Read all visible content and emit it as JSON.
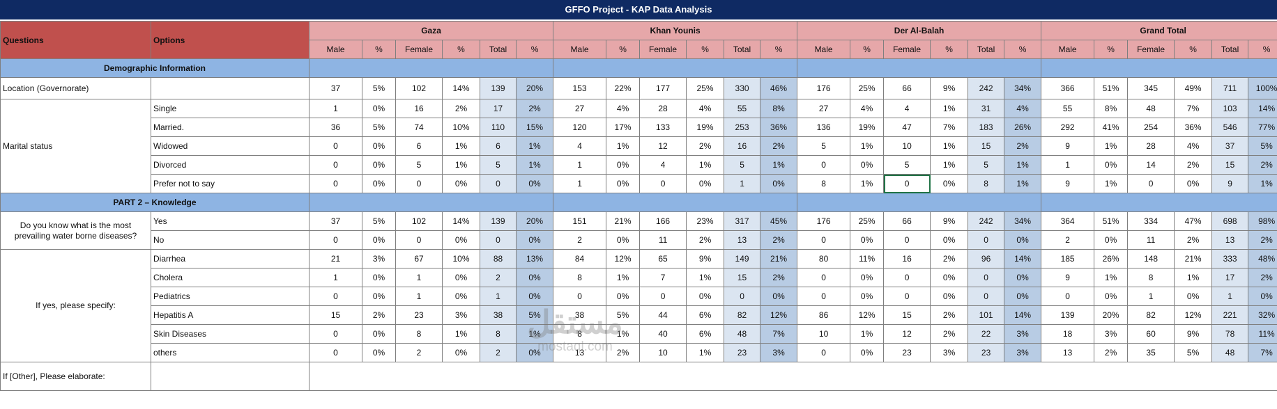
{
  "title": "GFFO Project - KAP Data Analysis",
  "headers": {
    "questions": "Questions",
    "options": "Options",
    "regions": [
      "Gaza",
      "Khan Younis",
      "Der Al-Balah",
      "Grand Total"
    ],
    "sub": [
      "Male",
      "%",
      "Female",
      "%",
      "Total",
      "%"
    ]
  },
  "sections": {
    "demo": "Demographic Information",
    "knowledge": "PART 2 – Knowledge"
  },
  "questions": {
    "location": "Location (Governorate)",
    "marital": "Marital status",
    "know_line1": "Do you know what is the most",
    "know_line2": "prevailing water borne diseases?",
    "specify": "If yes, please specify:",
    "other": "If [Other], Please elaborate:"
  },
  "rows": [
    {
      "option": "",
      "values": [
        "37",
        "5%",
        "102",
        "14%",
        "139",
        "20%",
        "153",
        "22%",
        "177",
        "25%",
        "330",
        "46%",
        "176",
        "25%",
        "66",
        "9%",
        "242",
        "34%",
        "366",
        "51%",
        "345",
        "49%",
        "711",
        "100%"
      ]
    },
    {
      "option": "Single",
      "values": [
        "1",
        "0%",
        "16",
        "2%",
        "17",
        "2%",
        "27",
        "4%",
        "28",
        "4%",
        "55",
        "8%",
        "27",
        "4%",
        "4",
        "1%",
        "31",
        "4%",
        "55",
        "8%",
        "48",
        "7%",
        "103",
        "14%"
      ]
    },
    {
      "option": "Married.",
      "values": [
        "36",
        "5%",
        "74",
        "10%",
        "110",
        "15%",
        "120",
        "17%",
        "133",
        "19%",
        "253",
        "36%",
        "136",
        "19%",
        "47",
        "7%",
        "183",
        "26%",
        "292",
        "41%",
        "254",
        "36%",
        "546",
        "77%"
      ]
    },
    {
      "option": "Widowed",
      "values": [
        "0",
        "0%",
        "6",
        "1%",
        "6",
        "1%",
        "4",
        "1%",
        "12",
        "2%",
        "16",
        "2%",
        "5",
        "1%",
        "10",
        "1%",
        "15",
        "2%",
        "9",
        "1%",
        "28",
        "4%",
        "37",
        "5%"
      ]
    },
    {
      "option": "Divorced",
      "values": [
        "0",
        "0%",
        "5",
        "1%",
        "5",
        "1%",
        "1",
        "0%",
        "4",
        "1%",
        "5",
        "1%",
        "0",
        "0%",
        "5",
        "1%",
        "5",
        "1%",
        "1",
        "0%",
        "14",
        "2%",
        "15",
        "2%"
      ]
    },
    {
      "option": "Prefer not to say",
      "values": [
        "0",
        "0%",
        "0",
        "0%",
        "0",
        "0%",
        "1",
        "0%",
        "0",
        "0%",
        "1",
        "0%",
        "8",
        "1%",
        "0",
        "0%",
        "8",
        "1%",
        "9",
        "1%",
        "0",
        "0%",
        "9",
        "1%"
      ]
    },
    {
      "option": "Yes",
      "values": [
        "37",
        "5%",
        "102",
        "14%",
        "139",
        "20%",
        "151",
        "21%",
        "166",
        "23%",
        "317",
        "45%",
        "176",
        "25%",
        "66",
        "9%",
        "242",
        "34%",
        "364",
        "51%",
        "334",
        "47%",
        "698",
        "98%"
      ]
    },
    {
      "option": "No",
      "values": [
        "0",
        "0%",
        "0",
        "0%",
        "0",
        "0%",
        "2",
        "0%",
        "11",
        "2%",
        "13",
        "2%",
        "0",
        "0%",
        "0",
        "0%",
        "0",
        "0%",
        "2",
        "0%",
        "11",
        "2%",
        "13",
        "2%"
      ]
    },
    {
      "option": "Diarrhea",
      "values": [
        "21",
        "3%",
        "67",
        "10%",
        "88",
        "13%",
        "84",
        "12%",
        "65",
        "9%",
        "149",
        "21%",
        "80",
        "11%",
        "16",
        "2%",
        "96",
        "14%",
        "185",
        "26%",
        "148",
        "21%",
        "333",
        "48%"
      ]
    },
    {
      "option": "Cholera",
      "values": [
        "1",
        "0%",
        "1",
        "0%",
        "2",
        "0%",
        "8",
        "1%",
        "7",
        "1%",
        "15",
        "2%",
        "0",
        "0%",
        "0",
        "0%",
        "0",
        "0%",
        "9",
        "1%",
        "8",
        "1%",
        "17",
        "2%"
      ]
    },
    {
      "option": "Pediatrics",
      "values": [
        "0",
        "0%",
        "1",
        "0%",
        "1",
        "0%",
        "0",
        "0%",
        "0",
        "0%",
        "0",
        "0%",
        "0",
        "0%",
        "0",
        "0%",
        "0",
        "0%",
        "0",
        "0%",
        "1",
        "0%",
        "1",
        "0%"
      ]
    },
    {
      "option": "Hepatitis A",
      "values": [
        "15",
        "2%",
        "23",
        "3%",
        "38",
        "5%",
        "38",
        "5%",
        "44",
        "6%",
        "82",
        "12%",
        "86",
        "12%",
        "15",
        "2%",
        "101",
        "14%",
        "139",
        "20%",
        "82",
        "12%",
        "221",
        "32%"
      ]
    },
    {
      "option": "Skin Diseases",
      "values": [
        "0",
        "0%",
        "8",
        "1%",
        "8",
        "1%",
        "8",
        "1%",
        "40",
        "6%",
        "48",
        "7%",
        "10",
        "1%",
        "12",
        "2%",
        "22",
        "3%",
        "18",
        "3%",
        "60",
        "9%",
        "78",
        "11%"
      ]
    },
    {
      "option": "others",
      "values": [
        "0",
        "0%",
        "2",
        "0%",
        "2",
        "0%",
        "13",
        "2%",
        "10",
        "1%",
        "23",
        "3%",
        "0",
        "0%",
        "23",
        "3%",
        "23",
        "3%",
        "13",
        "2%",
        "35",
        "5%",
        "48",
        "7%"
      ]
    }
  ],
  "watermark": {
    "arabic": "مستقل",
    "latin": "mostaql.com"
  }
}
